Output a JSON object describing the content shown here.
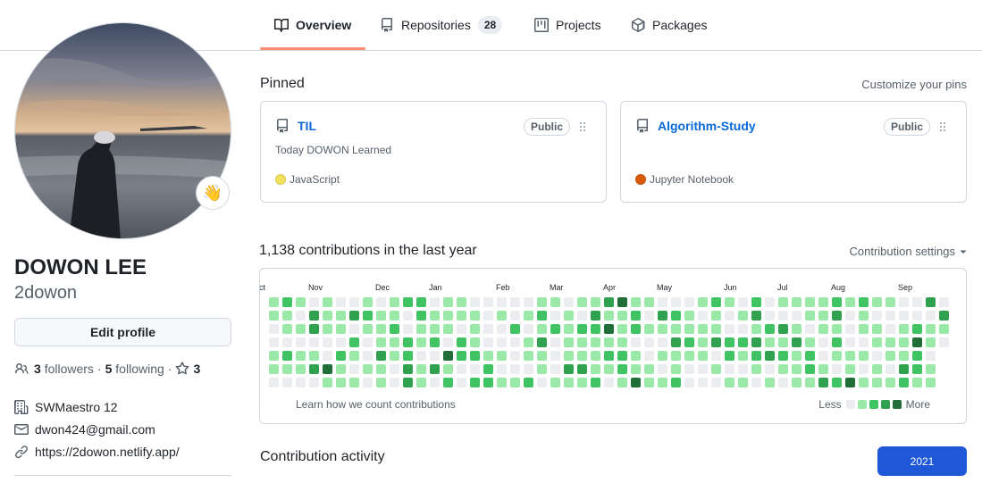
{
  "tabs": [
    {
      "label": "Overview",
      "icon": "book-icon",
      "selected": true
    },
    {
      "label": "Repositories",
      "icon": "repo-icon",
      "count": "28"
    },
    {
      "label": "Projects",
      "icon": "project-icon"
    },
    {
      "label": "Packages",
      "icon": "package-icon"
    }
  ],
  "profile": {
    "full_name": "DOWON LEE",
    "username": "2dowon",
    "status_emoji": "👋",
    "edit_label": "Edit profile",
    "followers_count": "3",
    "followers_label": "followers",
    "separator": "·",
    "following_count": "5",
    "following_label": "following",
    "stars_count": "3",
    "organization": "SWMaestro 12",
    "email": "dwon424@gmail.com",
    "website": "https://2dowon.netlify.app/"
  },
  "pinned": {
    "title": "Pinned",
    "customize_label": "Customize your pins",
    "items": [
      {
        "name": "TIL",
        "visibility": "Public",
        "description": "Today DOWON Learned",
        "language": "JavaScript",
        "language_color": "#f1e05a"
      },
      {
        "name": "Algorithm-Study",
        "visibility": "Public",
        "description": "",
        "language": "Jupyter Notebook",
        "language_color": "#da5b0b"
      }
    ]
  },
  "contributions": {
    "title": "1,138 contributions in the last year",
    "settings_label": "Contribution settings",
    "months": [
      "Oct",
      "Nov",
      "Dec",
      "Jan",
      "Feb",
      "Mar",
      "Apr",
      "May",
      "Jun",
      "Jul",
      "Aug",
      "Sep"
    ],
    "learn_label": "Learn how we count contributions",
    "legend_less": "Less",
    "legend_more": "More",
    "colors": [
      "#ebedf0",
      "#9be9a8",
      "#40c463",
      "#30a14e",
      "#216e39"
    ]
  },
  "activity": {
    "title": "Contribution activity",
    "year": "2021"
  }
}
